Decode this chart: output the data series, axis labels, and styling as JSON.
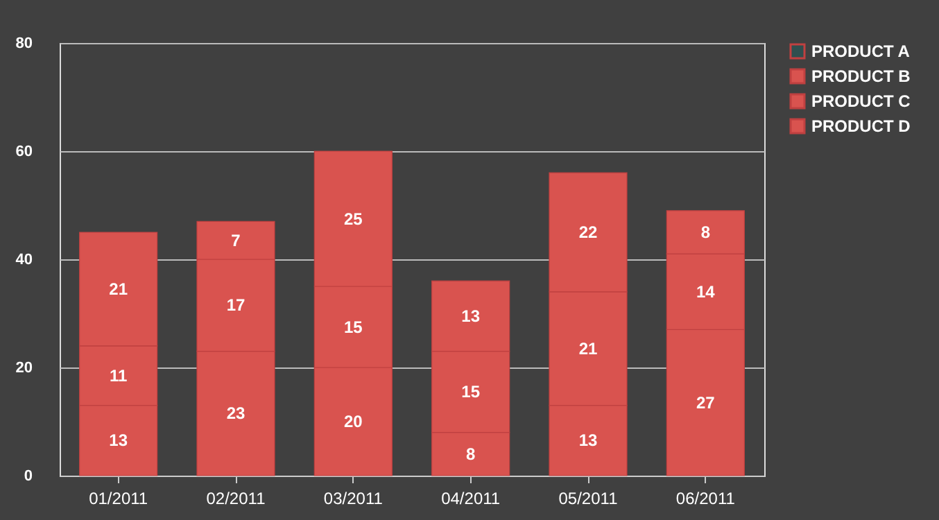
{
  "chart_data": {
    "type": "bar",
    "stacked": true,
    "categories": [
      "01/2011",
      "02/2011",
      "03/2011",
      "04/2011",
      "05/2011",
      "06/2011"
    ],
    "series": [
      {
        "name": "PRODUCT A",
        "color": "#2f4f4f",
        "values": [
          null,
          null,
          null,
          null,
          null,
          null
        ]
      },
      {
        "name": "PRODUCT B",
        "color": "#d9534f",
        "values": [
          13,
          23,
          20,
          8,
          13,
          27
        ]
      },
      {
        "name": "PRODUCT C",
        "color": "#d9534f",
        "values": [
          11,
          17,
          15,
          15,
          21,
          14
        ]
      },
      {
        "name": "PRODUCT D",
        "color": "#d9534f",
        "values": [
          21,
          7,
          25,
          13,
          22,
          8
        ]
      }
    ],
    "ylim": [
      0,
      80
    ],
    "yticks": [
      0,
      20,
      40,
      60,
      80
    ],
    "grid": "y",
    "legend": "right",
    "data_labels": true
  }
}
